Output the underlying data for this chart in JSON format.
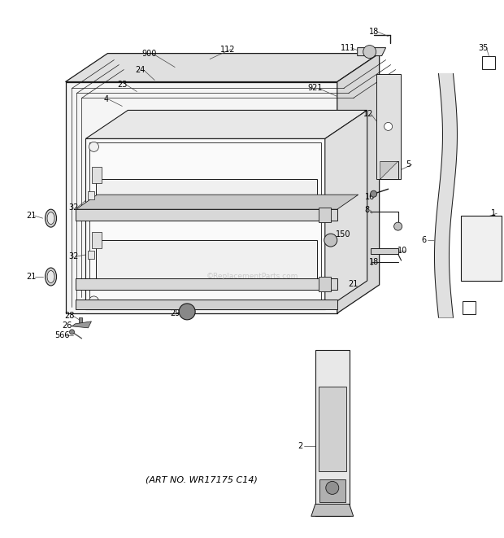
{
  "art_no": "(ART NO. WR17175 C14)",
  "bg_color": "#ffffff",
  "lc": "#1a1a1a",
  "figsize": [
    6.2,
    6.61
  ],
  "dpi": 100,
  "watermark": "©ReplacementParts.com"
}
